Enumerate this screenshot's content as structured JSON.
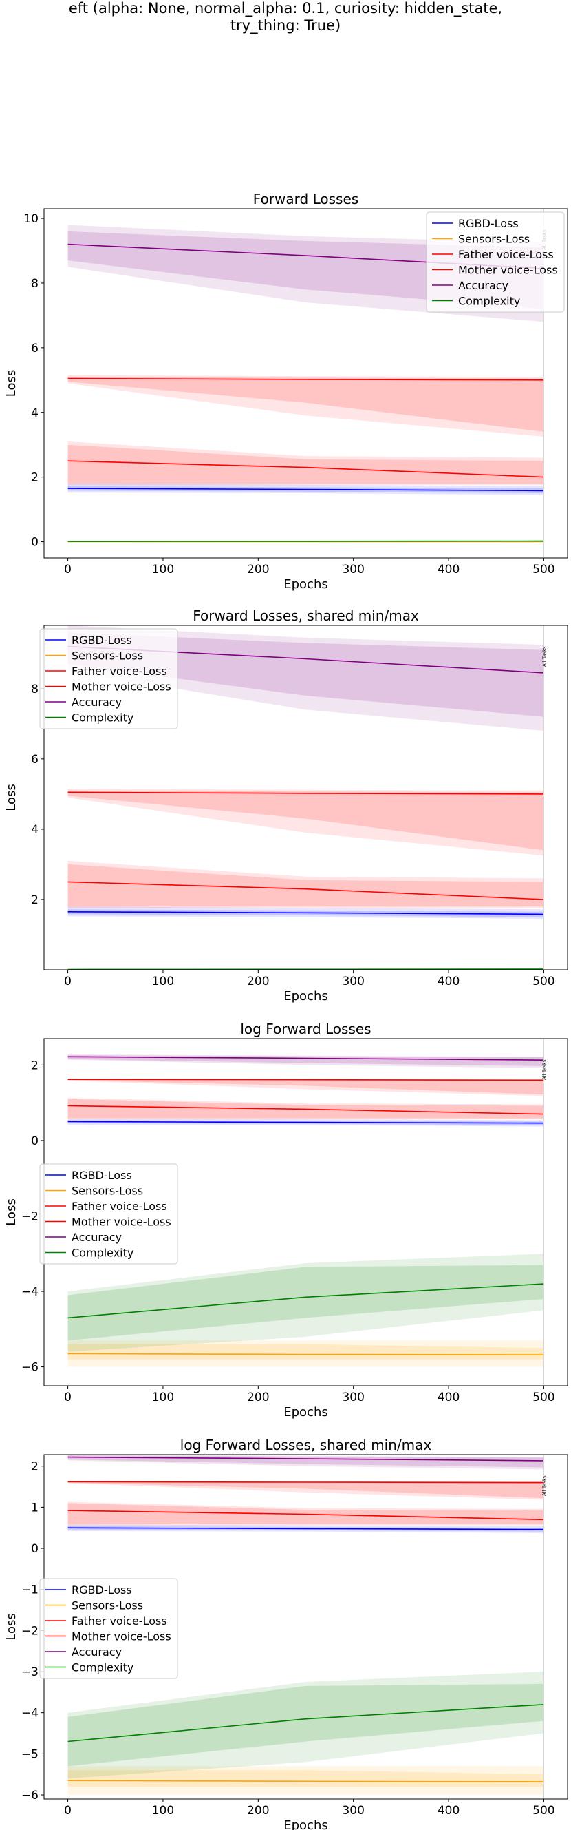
{
  "figure": {
    "title_lines": [
      "eft (alpha: None, normal_alpha: 0.1, curiosity: hidden_state,",
      "try_thing: True)"
    ]
  },
  "colors": {
    "rgbd": "#0000ff",
    "sensors": "#ffa500",
    "father": "#ff0000",
    "mother": "#ff0000",
    "accuracy": "#800080",
    "complexity": "#008000",
    "marker_line": "#d3d3d3"
  },
  "chart_data": [
    {
      "type": "line",
      "title": "Forward Losses",
      "xlabel": "Epochs",
      "ylabel": "Loss",
      "xlim": [
        -25,
        525
      ],
      "ylim": [
        -0.5,
        10.3
      ],
      "xticks": [
        0,
        100,
        200,
        300,
        400,
        500
      ],
      "yticks": [
        0,
        2,
        4,
        6,
        8,
        10
      ],
      "grid": false,
      "legend": "upper right",
      "marker_label": "All Tasks",
      "x": [
        0,
        250,
        500
      ],
      "series": [
        {
          "name": "RGBD-Loss",
          "color_key": "rgbd",
          "values": [
            1.65,
            1.62,
            1.58
          ],
          "inner": [
            [
              1.58,
              1.72
            ],
            [
              1.55,
              1.69
            ],
            [
              1.5,
              1.65
            ]
          ],
          "outer": [
            [
              1.52,
              1.8
            ],
            [
              1.5,
              1.76
            ],
            [
              1.45,
              1.72
            ]
          ]
        },
        {
          "name": "Sensors-Loss",
          "color_key": "sensors",
          "values": [
            0.003,
            0.003,
            0.003
          ],
          "inner": [
            [
              0.002,
              0.004
            ],
            [
              0.002,
              0.004
            ],
            [
              0.002,
              0.004
            ]
          ],
          "outer": [
            [
              0.002,
              0.005
            ],
            [
              0.002,
              0.005
            ],
            [
              0.002,
              0.005
            ]
          ]
        },
        {
          "name": "Father voice-Loss",
          "color_key": "father",
          "values": [
            5.05,
            5.02,
            5.0
          ],
          "inner": [
            [
              4.95,
              5.1
            ],
            [
              4.3,
              5.07
            ],
            [
              3.4,
              5.05
            ]
          ],
          "outer": [
            [
              4.9,
              5.15
            ],
            [
              3.9,
              5.12
            ],
            [
              3.25,
              5.1
            ]
          ]
        },
        {
          "name": "Mother voice-Loss",
          "color_key": "mother",
          "values": [
            2.5,
            2.3,
            2.0
          ],
          "inner": [
            [
              1.8,
              3.0
            ],
            [
              1.8,
              2.55
            ],
            [
              1.8,
              2.5
            ]
          ],
          "outer": [
            [
              1.75,
              3.1
            ],
            [
              1.75,
              2.65
            ],
            [
              1.75,
              2.6
            ]
          ]
        },
        {
          "name": "Accuracy",
          "color_key": "accuracy",
          "values": [
            9.2,
            8.85,
            8.45
          ],
          "inner": [
            [
              8.7,
              9.6
            ],
            [
              7.8,
              9.3
            ],
            [
              7.2,
              9.1
            ]
          ],
          "outer": [
            [
              8.5,
              9.8
            ],
            [
              7.4,
              9.45
            ],
            [
              6.8,
              9.25
            ]
          ]
        },
        {
          "name": "Complexity",
          "color_key": "complexity",
          "values": [
            0.01,
            0.013,
            0.02
          ],
          "inner": [
            [
              0.005,
              0.018
            ],
            [
              0.006,
              0.024
            ],
            [
              0.01,
              0.035
            ]
          ],
          "outer": [
            [
              0.003,
              0.025
            ],
            [
              0.004,
              0.035
            ],
            [
              0.006,
              0.05
            ]
          ]
        }
      ]
    },
    {
      "type": "line",
      "title": "Forward Losses, shared min/max",
      "xlabel": "Epochs",
      "ylabel": "Loss",
      "xlim": [
        -25,
        525
      ],
      "ylim": [
        0.0,
        9.8
      ],
      "xticks": [
        0,
        100,
        200,
        300,
        400,
        500
      ],
      "yticks": [
        2,
        4,
        6,
        8
      ],
      "grid": false,
      "legend": "upper left",
      "marker_label": "All Tasks",
      "x": [
        0,
        250,
        500
      ],
      "series": [
        {
          "name": "RGBD-Loss",
          "color_key": "rgbd",
          "values": [
            1.65,
            1.62,
            1.58
          ],
          "inner": [
            [
              1.58,
              1.72
            ],
            [
              1.55,
              1.69
            ],
            [
              1.5,
              1.65
            ]
          ],
          "outer": [
            [
              1.52,
              1.8
            ],
            [
              1.5,
              1.76
            ],
            [
              1.45,
              1.72
            ]
          ]
        },
        {
          "name": "Sensors-Loss",
          "color_key": "sensors",
          "values": [
            0.003,
            0.003,
            0.003
          ],
          "inner": [
            [
              0.002,
              0.004
            ],
            [
              0.002,
              0.004
            ],
            [
              0.002,
              0.004
            ]
          ],
          "outer": [
            [
              0.002,
              0.005
            ],
            [
              0.002,
              0.005
            ],
            [
              0.002,
              0.005
            ]
          ]
        },
        {
          "name": "Father voice-Loss",
          "color_key": "father",
          "values": [
            5.05,
            5.02,
            5.0
          ],
          "inner": [
            [
              4.95,
              5.1
            ],
            [
              4.3,
              5.07
            ],
            [
              3.4,
              5.05
            ]
          ],
          "outer": [
            [
              4.9,
              5.15
            ],
            [
              3.9,
              5.12
            ],
            [
              3.25,
              5.1
            ]
          ]
        },
        {
          "name": "Mother voice-Loss",
          "color_key": "mother",
          "values": [
            2.5,
            2.3,
            2.0
          ],
          "inner": [
            [
              1.8,
              3.0
            ],
            [
              1.8,
              2.55
            ],
            [
              1.8,
              2.5
            ]
          ],
          "outer": [
            [
              1.75,
              3.1
            ],
            [
              1.75,
              2.65
            ],
            [
              1.75,
              2.6
            ]
          ]
        },
        {
          "name": "Accuracy",
          "color_key": "accuracy",
          "values": [
            9.2,
            8.85,
            8.45
          ],
          "inner": [
            [
              8.7,
              9.6
            ],
            [
              7.8,
              9.3
            ],
            [
              7.2,
              9.1
            ]
          ],
          "outer": [
            [
              8.5,
              9.8
            ],
            [
              7.4,
              9.45
            ],
            [
              6.8,
              9.25
            ]
          ]
        },
        {
          "name": "Complexity",
          "color_key": "complexity",
          "values": [
            0.01,
            0.013,
            0.02
          ],
          "inner": [
            [
              0.005,
              0.018
            ],
            [
              0.006,
              0.024
            ],
            [
              0.01,
              0.035
            ]
          ],
          "outer": [
            [
              0.003,
              0.025
            ],
            [
              0.004,
              0.035
            ],
            [
              0.006,
              0.05
            ]
          ]
        }
      ]
    },
    {
      "type": "line",
      "title": "log Forward Losses",
      "xlabel": "Epochs",
      "ylabel": "Loss",
      "xlim": [
        -25,
        525
      ],
      "ylim": [
        -6.5,
        2.7
      ],
      "xticks": [
        0,
        100,
        200,
        300,
        400,
        500
      ],
      "yticks": [
        -6,
        -4,
        -2,
        0,
        2
      ],
      "grid": false,
      "legend": "center left",
      "marker_label": "All Tasks",
      "x": [
        0,
        250,
        500
      ],
      "series": [
        {
          "name": "RGBD-Loss",
          "color_key": "rgbd",
          "values": [
            0.5,
            0.48,
            0.46
          ],
          "inner": [
            [
              0.46,
              0.54
            ],
            [
              0.44,
              0.52
            ],
            [
              0.41,
              0.5
            ]
          ],
          "outer": [
            [
              0.42,
              0.58
            ],
            [
              0.41,
              0.56
            ],
            [
              0.37,
              0.54
            ]
          ]
        },
        {
          "name": "Sensors-Loss",
          "color_key": "sensors",
          "values": [
            -5.65,
            -5.67,
            -5.68
          ],
          "inner": [
            [
              -5.8,
              -5.4
            ],
            [
              -5.8,
              -5.4
            ],
            [
              -5.8,
              -5.5
            ]
          ],
          "outer": [
            [
              -6.0,
              -5.3
            ],
            [
              -6.0,
              -5.3
            ],
            [
              -6.0,
              -5.3
            ]
          ]
        },
        {
          "name": "Father voice-Loss",
          "color_key": "father",
          "values": [
            1.62,
            1.61,
            1.6
          ],
          "inner": [
            [
              1.6,
              1.63
            ],
            [
              1.45,
              1.62
            ],
            [
              1.22,
              1.62
            ]
          ],
          "outer": [
            [
              1.59,
              1.64
            ],
            [
              1.36,
              1.63
            ],
            [
              1.18,
              1.63
            ]
          ]
        },
        {
          "name": "Mother voice-Loss",
          "color_key": "mother",
          "values": [
            0.92,
            0.83,
            0.7
          ],
          "inner": [
            [
              0.59,
              1.1
            ],
            [
              0.59,
              0.94
            ],
            [
              0.59,
              0.92
            ]
          ],
          "outer": [
            [
              0.56,
              1.13
            ],
            [
              0.56,
              0.98
            ],
            [
              0.56,
              0.96
            ]
          ]
        },
        {
          "name": "Accuracy",
          "color_key": "accuracy",
          "values": [
            2.22,
            2.18,
            2.13
          ],
          "inner": [
            [
              2.16,
              2.26
            ],
            [
              2.05,
              2.23
            ],
            [
              1.97,
              2.21
            ]
          ],
          "outer": [
            [
              2.14,
              2.28
            ],
            [
              2.0,
              2.25
            ],
            [
              1.92,
              2.22
            ]
          ]
        },
        {
          "name": "Complexity",
          "color_key": "complexity",
          "values": [
            -4.7,
            -4.15,
            -3.8
          ],
          "inner": [
            [
              -5.3,
              -4.1
            ],
            [
              -4.7,
              -3.35
            ],
            [
              -4.2,
              -3.3
            ]
          ],
          "outer": [
            [
              -5.6,
              -4.0
            ],
            [
              -5.2,
              -3.25
            ],
            [
              -4.5,
              -3.0
            ]
          ]
        }
      ]
    },
    {
      "type": "line",
      "title": "log Forward Losses, shared min/max",
      "xlabel": "Epochs",
      "ylabel": "Loss",
      "xlim": [
        -25,
        525
      ],
      "ylim": [
        -6.1,
        2.28
      ],
      "xticks": [
        0,
        100,
        200,
        300,
        400,
        500
      ],
      "yticks": [
        -6,
        -5,
        -4,
        -3,
        -2,
        -1,
        0,
        1,
        2
      ],
      "grid": false,
      "legend": "center left",
      "marker_label": "All Tasks",
      "x": [
        0,
        250,
        500
      ],
      "series": [
        {
          "name": "RGBD-Loss",
          "color_key": "rgbd",
          "values": [
            0.5,
            0.48,
            0.46
          ],
          "inner": [
            [
              0.46,
              0.54
            ],
            [
              0.44,
              0.52
            ],
            [
              0.41,
              0.5
            ]
          ],
          "outer": [
            [
              0.42,
              0.58
            ],
            [
              0.41,
              0.56
            ],
            [
              0.37,
              0.54
            ]
          ]
        },
        {
          "name": "Sensors-Loss",
          "color_key": "sensors",
          "values": [
            -5.65,
            -5.67,
            -5.68
          ],
          "inner": [
            [
              -5.8,
              -5.4
            ],
            [
              -5.8,
              -5.4
            ],
            [
              -5.8,
              -5.5
            ]
          ],
          "outer": [
            [
              -6.0,
              -5.3
            ],
            [
              -6.0,
              -5.3
            ],
            [
              -6.0,
              -5.3
            ]
          ]
        },
        {
          "name": "Father voice-Loss",
          "color_key": "father",
          "values": [
            1.62,
            1.61,
            1.6
          ],
          "inner": [
            [
              1.6,
              1.63
            ],
            [
              1.45,
              1.62
            ],
            [
              1.22,
              1.62
            ]
          ],
          "outer": [
            [
              1.59,
              1.64
            ],
            [
              1.36,
              1.63
            ],
            [
              1.18,
              1.63
            ]
          ]
        },
        {
          "name": "Mother voice-Loss",
          "color_key": "mother",
          "values": [
            0.92,
            0.83,
            0.7
          ],
          "inner": [
            [
              0.59,
              1.1
            ],
            [
              0.59,
              0.94
            ],
            [
              0.59,
              0.92
            ]
          ],
          "outer": [
            [
              0.56,
              1.13
            ],
            [
              0.56,
              0.98
            ],
            [
              0.56,
              0.96
            ]
          ]
        },
        {
          "name": "Accuracy",
          "color_key": "accuracy",
          "values": [
            2.22,
            2.18,
            2.13
          ],
          "inner": [
            [
              2.16,
              2.26
            ],
            [
              2.05,
              2.23
            ],
            [
              1.97,
              2.21
            ]
          ],
          "outer": [
            [
              2.14,
              2.28
            ],
            [
              2.0,
              2.25
            ],
            [
              1.92,
              2.22
            ]
          ]
        },
        {
          "name": "Complexity",
          "color_key": "complexity",
          "values": [
            -4.7,
            -4.15,
            -3.8
          ],
          "inner": [
            [
              -5.3,
              -4.1
            ],
            [
              -4.7,
              -3.35
            ],
            [
              -4.2,
              -3.3
            ]
          ],
          "outer": [
            [
              -5.6,
              -4.0
            ],
            [
              -5.2,
              -3.25
            ],
            [
              -4.5,
              -3.0
            ]
          ]
        }
      ]
    }
  ]
}
